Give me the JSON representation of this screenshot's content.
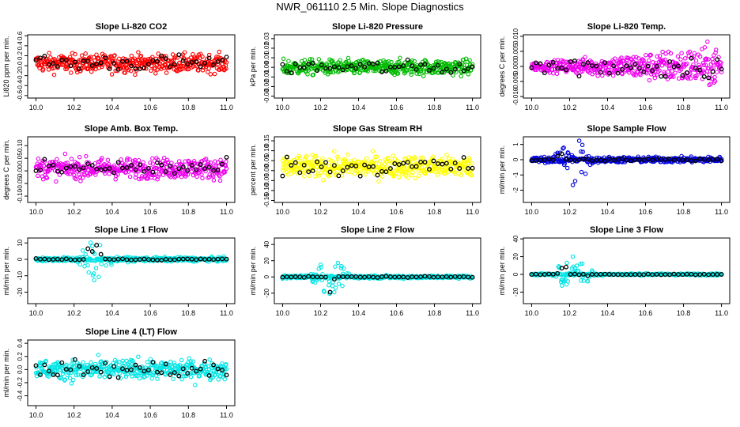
{
  "title": "NWR_061110  2.5 Min. Slope Diagnostics",
  "chart_data": [
    {
      "type": "scatter",
      "title": "Slope Li-820 CO2",
      "ylabel": "Li820 ppm per min.",
      "color": "#ff0000",
      "xlim": [
        10.0,
        11.0
      ],
      "ylim": [
        -0.65,
        0.62
      ],
      "xticks": [
        "10.0",
        "10.2",
        "10.4",
        "10.6",
        "10.8",
        "11.0"
      ],
      "yticks": [
        "-0.6",
        "-0.4",
        "-0.2",
        "0.0",
        "0.2",
        "0.4",
        "0.6"
      ],
      "pattern": {
        "center": 0.05,
        "spread": 0.18,
        "burst_amp": 0,
        "burst_center": 10.2
      }
    },
    {
      "type": "scatter",
      "title": "Slope Li-820 Pressure",
      "ylabel": "kPa per min.",
      "color": "#00bb00",
      "xlim": [
        10.0,
        11.0
      ],
      "ylim": [
        -0.032,
        0.034
      ],
      "xticks": [
        "10.0",
        "10.2",
        "10.4",
        "10.6",
        "10.8",
        "11.0"
      ],
      "yticks": [
        "-0.03",
        "-0.02",
        "-0.01",
        "0.00",
        "0.01",
        "0.02",
        "0.03"
      ],
      "pattern": {
        "center": 0.0,
        "spread": 0.008,
        "burst_amp": 0,
        "burst_center": 10.2
      }
    },
    {
      "type": "scatter",
      "title": "Slope Li-820 Temp.",
      "ylabel": "degrees C per min.",
      "color": "#ee00ee",
      "xlim": [
        10.0,
        11.0
      ],
      "ylim": [
        -0.0105,
        0.0105
      ],
      "xticks": [
        "10.0",
        "10.2",
        "10.4",
        "10.6",
        "10.8",
        "11.0"
      ],
      "yticks": [
        "-0.010",
        "-0.005",
        "0.000",
        "0.005",
        "0.010"
      ],
      "pattern": {
        "center": 0.0,
        "spread": 0.0035,
        "burst_amp": 0,
        "burst_center": 10.2,
        "fan": true
      }
    },
    {
      "type": "scatter",
      "title": "Slope Amb. Box Temp.",
      "ylabel": "degrees C per min.",
      "color": "#ee00ee",
      "xlim": [
        10.0,
        11.0
      ],
      "ylim": [
        -0.125,
        0.135
      ],
      "xticks": [
        "10.0",
        "10.2",
        "10.4",
        "10.6",
        "10.8",
        "11.0"
      ],
      "yticks": [
        "-0.10",
        "-0.05",
        "0.00",
        "0.05",
        "0.10"
      ],
      "pattern": {
        "center": 0.01,
        "spread": 0.04,
        "burst_amp": 0,
        "burst_center": 10.2
      }
    },
    {
      "type": "scatter",
      "title": "Slope Gas Stream RH",
      "ylabel": "percent per min.",
      "color": "#ffff00",
      "xlim": [
        10.0,
        11.0
      ],
      "ylim": [
        -0.16,
        0.17
      ],
      "xticks": [
        "10.0",
        "10.2",
        "10.4",
        "10.6",
        "10.8",
        "11.0"
      ],
      "yticks": [
        "-0.15",
        "-0.10",
        "-0.05",
        "0.00",
        "0.05",
        "0.10",
        "0.15"
      ],
      "pattern": {
        "center": 0.02,
        "spread": 0.055,
        "burst_amp": 0,
        "burst_center": 10.2
      }
    },
    {
      "type": "scatter",
      "title": "Slope Sample Flow",
      "ylabel": "ml/min per min.",
      "color": "#0000dd",
      "xlim": [
        10.0,
        11.0
      ],
      "ylim": [
        -2.8,
        1.5
      ],
      "xticks": [
        "10.0",
        "10.2",
        "10.4",
        "10.6",
        "10.8",
        "11.0"
      ],
      "yticks": [
        "-2",
        "-1",
        "0",
        "1"
      ],
      "pattern": {
        "center": 0.0,
        "spread": 0.18,
        "burst_amp": 1.8,
        "burst_center": 10.22
      }
    },
    {
      "type": "scatter",
      "title": "Slope Line 1 Flow",
      "ylabel": "ml/min per min.",
      "color": "#00e5e5",
      "xlim": [
        10.0,
        11.0
      ],
      "ylim": [
        -27,
        13
      ],
      "xticks": [
        "10.0",
        "10.2",
        "10.4",
        "10.6",
        "10.8",
        "11.0"
      ],
      "yticks": [
        "-20",
        "-10",
        "0",
        "10"
      ],
      "pattern": {
        "center": 0.0,
        "spread": 1.2,
        "burst_amp": 14,
        "burst_center": 10.3
      }
    },
    {
      "type": "scatter",
      "title": "Slope Line 2 Flow",
      "ylabel": "ml/min per min.",
      "color": "#00e5e5",
      "xlim": [
        10.0,
        11.0
      ],
      "ylim": [
        -33,
        48
      ],
      "xticks": [
        "10.0",
        "10.2",
        "10.4",
        "10.6",
        "10.8",
        "11.0"
      ],
      "yticks": [
        "-20",
        "0",
        "20",
        "40"
      ],
      "pattern": {
        "center": 0.0,
        "spread": 1.8,
        "burst_amp": 28,
        "burst_center": 10.25
      }
    },
    {
      "type": "scatter",
      "title": "Slope Line 3 Flow",
      "ylabel": "ml/min per min.",
      "color": "#00e5e5",
      "xlim": [
        10.0,
        11.0
      ],
      "ylim": [
        -33,
        41
      ],
      "xticks": [
        "10.0",
        "10.2",
        "10.4",
        "10.6",
        "10.8",
        "11.0"
      ],
      "yticks": [
        "-20",
        "0",
        "20",
        "40"
      ],
      "pattern": {
        "center": 0.0,
        "spread": 1.0,
        "burst_amp": 26,
        "burst_center": 10.22
      }
    },
    {
      "type": "scatter",
      "title": "Slope Line 4 (LT) Flow",
      "ylabel": "ml/min per min.",
      "color": "#00e5e5",
      "xlim": [
        10.0,
        11.0
      ],
      "ylim": [
        -0.55,
        0.45
      ],
      "xticks": [
        "10.0",
        "10.2",
        "10.4",
        "10.6",
        "10.8",
        "11.0"
      ],
      "yticks": [
        "-0.4",
        "-0.2",
        "0.0",
        "0.2",
        "0.4"
      ],
      "pattern": {
        "center": 0.0,
        "spread": 0.15,
        "burst_amp": 0,
        "burst_center": 10.2
      }
    }
  ]
}
